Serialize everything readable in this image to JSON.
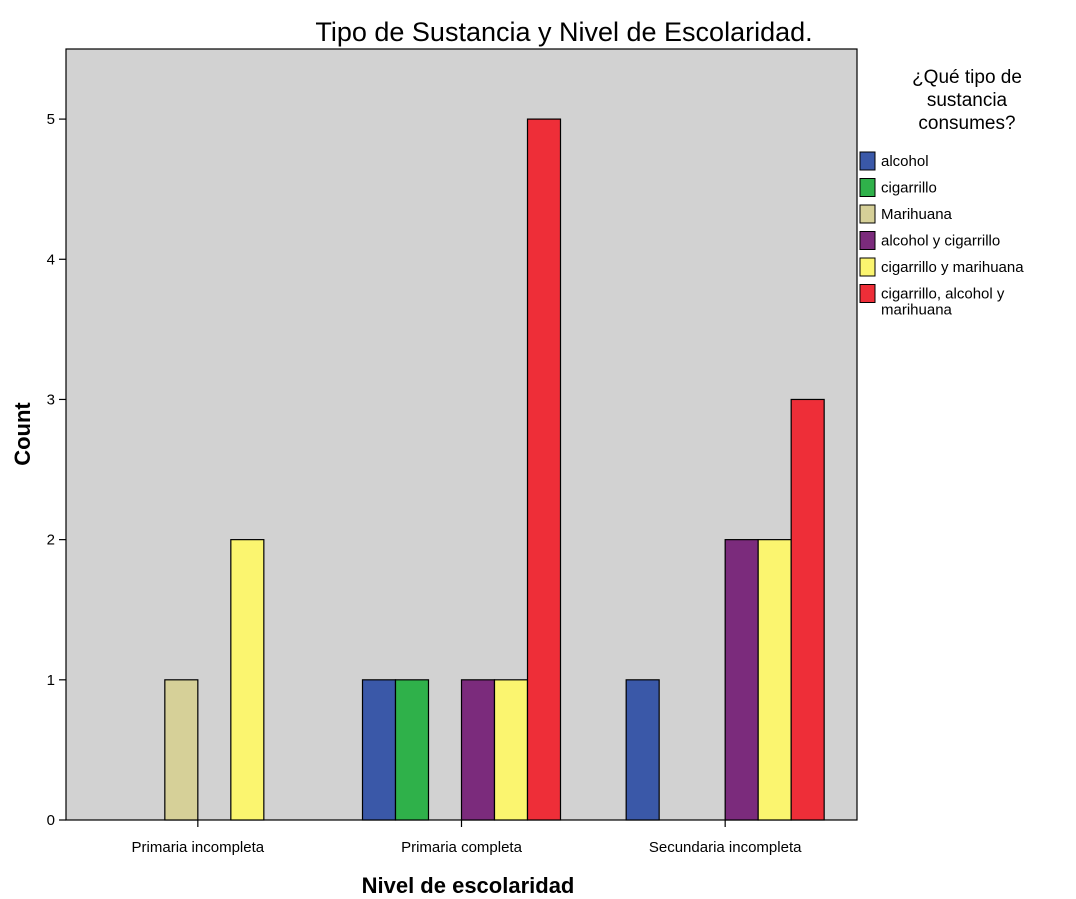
{
  "chart_data": {
    "type": "bar",
    "title": "Tipo de Sustancia y Nivel de Escolaridad.",
    "xlabel": "Nivel de escolaridad",
    "ylabel": "Count",
    "ylim": [
      0,
      5.5
    ],
    "yticks": [
      "0",
      "1",
      "2",
      "3",
      "4",
      "5"
    ],
    "grid": false,
    "legend_position": "right",
    "legend_title_lines": [
      "¿Qué tipo de",
      "sustancia",
      "consumes?"
    ],
    "categories": [
      "Primaria incompleta",
      "Primaria completa",
      "Secundaria incompleta"
    ],
    "series": [
      {
        "name": "alcohol",
        "color": "#3a58a8",
        "values": [
          0,
          1,
          1
        ]
      },
      {
        "name": "cigarrillo",
        "color": "#2fb14a",
        "values": [
          0,
          1,
          0
        ]
      },
      {
        "name": "Marihuana",
        "color": "#d6d098",
        "values": [
          1,
          0,
          0
        ]
      },
      {
        "name": "alcohol y cigarrillo",
        "color": "#7b2b7c",
        "values": [
          0,
          1,
          2
        ]
      },
      {
        "name": "cigarrillo y marihuana",
        "color": "#fbf56f",
        "values": [
          2,
          1,
          2
        ]
      },
      {
        "name": "cigarrillo, alcohol y marihuana",
        "name_lines": [
          "cigarrillo, alcohol y",
          "marihuana"
        ],
        "color": "#ee2e38",
        "values": [
          0,
          5,
          3
        ]
      }
    ],
    "plot_background": "#d2d2d2"
  }
}
